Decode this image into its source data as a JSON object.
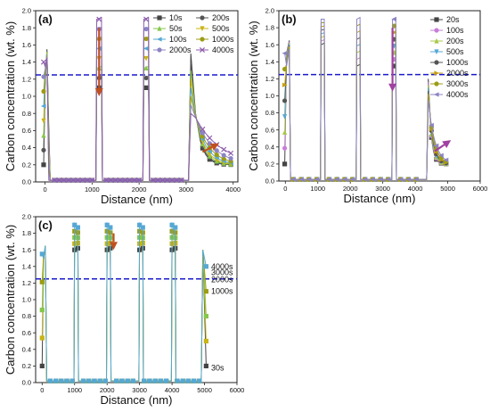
{
  "chart_data": [
    {
      "type": "line",
      "panel_label": "(a)",
      "xlabel": "Distance (nm)",
      "ylabel": "Carbon concentration (wt. %)",
      "xlim": [
        -200,
        4100
      ],
      "ylim": [
        0.0,
        2.0
      ],
      "xticks": [
        0,
        1000,
        2000,
        3000,
        4000
      ],
      "yticks": [
        0.0,
        0.2,
        0.4,
        0.6,
        0.8,
        1.0,
        1.2,
        1.4,
        1.6,
        1.8,
        2.0
      ],
      "reference_line_y": 1.25,
      "legend_columns": 2,
      "legend": [
        {
          "label": "10s",
          "color": "#444444",
          "marker": "square"
        },
        {
          "label": "200s",
          "color": "#555555",
          "marker": "circle"
        },
        {
          "label": "50s",
          "color": "#86c64a",
          "marker": "triangle-up"
        },
        {
          "label": "500s",
          "color": "#c8b414",
          "marker": "triangle-down"
        },
        {
          "label": "100s",
          "color": "#56a8d4",
          "marker": "triangle-left"
        },
        {
          "label": "1000s",
          "color": "#9c9c14",
          "marker": "circle"
        },
        {
          "label": "2000s",
          "color": "#8c84c4",
          "marker": "circle"
        },
        {
          "label": "4000s",
          "color": "#8c5cac",
          "marker": "x"
        }
      ],
      "regions": [
        {
          "x0": 0,
          "x1": 100,
          "peak": 1.55,
          "left_values": [
            0.2,
            0.95,
            1.25,
            1.35,
            1.4
          ]
        },
        {
          "x0": 1100,
          "x1": 1200,
          "values": [
            1.1,
            1.5,
            1.7,
            1.8,
            1.9
          ]
        },
        {
          "x0": 2100,
          "x1": 2200,
          "values": [
            1.15,
            1.5,
            1.7,
            1.8,
            1.9
          ]
        },
        {
          "x0": 3100,
          "x1": 4000,
          "decay": true
        }
      ],
      "arrows": [
        {
          "from": [
            1150,
            1.8
          ],
          "to": [
            1150,
            1.0
          ],
          "color": "#c05020"
        },
        {
          "from": [
            3350,
            0.35
          ],
          "to": [
            3700,
            0.45
          ],
          "color": "#c05020"
        }
      ]
    },
    {
      "type": "line",
      "panel_label": "(b)",
      "xlabel": "Distance (nm)",
      "ylabel": "Carbon concentration (wt. %)",
      "xlim": [
        -200,
        6000
      ],
      "ylim": [
        0.0,
        2.0
      ],
      "xticks": [
        0,
        1000,
        2000,
        3000,
        4000,
        5000,
        6000
      ],
      "yticks": [
        0.0,
        0.2,
        0.4,
        0.6,
        0.8,
        1.0,
        1.2,
        1.4,
        1.6,
        1.8,
        2.0
      ],
      "reference_line_y": 1.25,
      "legend_columns": 1,
      "legend": [
        {
          "label": "20s",
          "color": "#444444",
          "marker": "square"
        },
        {
          "label": "100s",
          "color": "#c87ed8",
          "marker": "circle"
        },
        {
          "label": "200s",
          "color": "#a8c84a",
          "marker": "triangle-up"
        },
        {
          "label": "500s",
          "color": "#56a8d4",
          "marker": "triangle-down"
        },
        {
          "label": "1000s",
          "color": "#555555",
          "marker": "circle"
        },
        {
          "label": "2000s",
          "color": "#c8a014",
          "marker": "triangle-right"
        },
        {
          "label": "3000s",
          "color": "#9c9c14",
          "marker": "circle"
        },
        {
          "label": "4000s",
          "color": "#8c84c4",
          "marker": "triangle-left"
        }
      ],
      "arrows": [
        {
          "from": [
            3300,
            1.8
          ],
          "to": [
            3300,
            1.05
          ],
          "color": "#a040a0"
        },
        {
          "from": [
            4600,
            0.35
          ],
          "to": [
            5100,
            0.48
          ],
          "color": "#a040a0"
        }
      ]
    },
    {
      "type": "line",
      "panel_label": "(c)",
      "xlabel": "Distance (nm)",
      "ylabel": "Carbon concentration (wt. %)",
      "xlim": [
        -200,
        6000
      ],
      "ylim": [
        0.0,
        2.0
      ],
      "xticks": [
        0,
        1000,
        2000,
        3000,
        4000,
        5000,
        6000
      ],
      "yticks": [
        0.0,
        0.2,
        0.4,
        0.6,
        0.8,
        1.0,
        1.2,
        1.4,
        1.6,
        1.8,
        2.0
      ],
      "reference_line_y": 1.25,
      "annotations": [
        {
          "label": "4000s",
          "x": 5150,
          "y": 1.4
        },
        {
          "label": "3000s",
          "x": 5150,
          "y": 1.33
        },
        {
          "label": "2000s",
          "x": 5150,
          "y": 1.24
        },
        {
          "label": "1000s",
          "x": 5150,
          "y": 1.1
        },
        {
          "label": "30s",
          "x": 5150,
          "y": 0.18
        }
      ],
      "arrows": [
        {
          "from": [
            2200,
            1.8
          ],
          "to": [
            2200,
            1.6
          ],
          "color": "#c05020"
        }
      ]
    }
  ]
}
